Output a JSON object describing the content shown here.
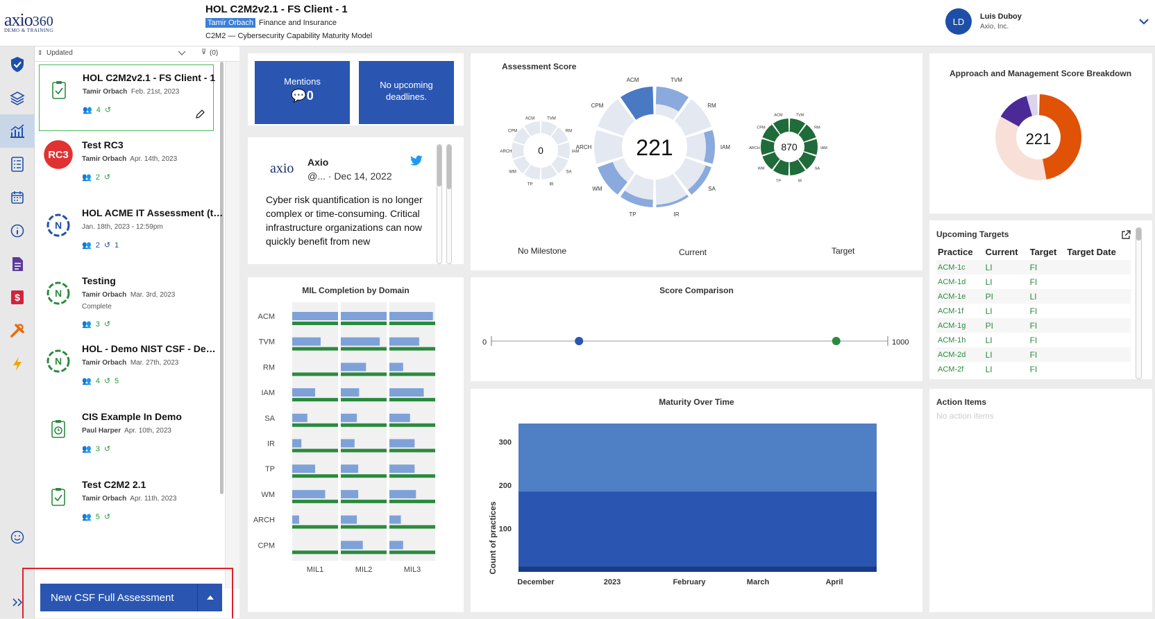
{
  "brand": {
    "logo_text": "axio",
    "logo_num": "360",
    "logo_sub": "DEMO & TRAINING"
  },
  "header": {
    "title": "HOL C2M2v2.1 - FS Client - 1",
    "owner_tag": "Tamir Orbach",
    "sector": "Finance and Insurance",
    "model": "C2M2 — Cybersecurity Capability Maturity Model"
  },
  "user": {
    "initials": "LD",
    "name": "Luis Duboy",
    "org": "Axio, Inc."
  },
  "sort": {
    "label": "Updated",
    "filter": "(0)"
  },
  "assessments": [
    {
      "title": "HOL C2M2v2.1 - FS Client - 1",
      "owner": "Tamir Orbach",
      "date": "Feb. 21st, 2023",
      "users": "4",
      "history": "",
      "status": ""
    },
    {
      "title": "Test RC3",
      "owner": "Tamir Orbach",
      "date": "Apr. 14th, 2023",
      "users": "2",
      "history": "",
      "status": "",
      "badge": "RC3"
    },
    {
      "title": "HOL ACME IT Assessment (test)",
      "owner": "",
      "date": "Jan. 18th, 2023 - 12:59pm",
      "users": "2",
      "history": "1",
      "status": ""
    },
    {
      "title": "Testing",
      "owner": "Tamir Orbach",
      "date": "Mar. 3rd, 2023",
      "users": "3",
      "history": "",
      "status": "Complete"
    },
    {
      "title": "HOL - Demo NIST CSF - Demo ...",
      "owner": "Tamir Orbach",
      "date": "Mar. 27th, 2023",
      "users": "4",
      "history": "5",
      "status": ""
    },
    {
      "title": "CIS Example In Demo",
      "owner": "Paul Harper",
      "date": "Apr. 10th, 2023",
      "users": "3",
      "history": "",
      "status": ""
    },
    {
      "title": "Test C2M2 2.1",
      "owner": "Tamir Orbach",
      "date": "Apr. 11th, 2023",
      "users": "5",
      "history": "",
      "status": ""
    }
  ],
  "new_button": {
    "label": "New CSF Full Assessment"
  },
  "mentions": {
    "label": "Mentions",
    "count": "0"
  },
  "deadlines": {
    "label": "No upcoming deadlines."
  },
  "tweet": {
    "account": "Axio",
    "logo": "axio",
    "handle": "@... · Dec 14, 2022",
    "body": "Cyber risk quantification is no longer complex or time-consuming. Critical infrastructure organizations can now quickly benefit from new"
  },
  "assessment_score": {
    "title": "Assessment Score",
    "milestone": {
      "label": "No Milestone",
      "value": "0"
    },
    "current": {
      "label": "Current",
      "value": "221"
    },
    "target": {
      "label": "Target",
      "value": "870"
    },
    "domains": [
      "ACM",
      "TVM",
      "RM",
      "IAM",
      "SA",
      "IR",
      "TP",
      "WM",
      "ARCH",
      "CPM"
    ],
    "current_fill": [
      0.55,
      0.35,
      0,
      0.18,
      0.12,
      0.05,
      0.15,
      0.32,
      0,
      0
    ]
  },
  "approach": {
    "title": "Approach and Management Score Breakdown",
    "value": "221"
  },
  "upcoming": {
    "title": "Upcoming Targets",
    "headers": [
      "Practice",
      "Current",
      "Target",
      "Target Date"
    ],
    "rows": [
      [
        "ACM-1c",
        "LI",
        "FI",
        ""
      ],
      [
        "ACM-1d",
        "LI",
        "FI",
        ""
      ],
      [
        "ACM-1e",
        "PI",
        "LI",
        ""
      ],
      [
        "ACM-1f",
        "LI",
        "FI",
        ""
      ],
      [
        "ACM-1g",
        "PI",
        "FI",
        ""
      ],
      [
        "ACM-1h",
        "LI",
        "FI",
        ""
      ],
      [
        "ACM-2d",
        "LI",
        "FI",
        ""
      ],
      [
        "ACM-2f",
        "LI",
        "FI",
        ""
      ]
    ]
  },
  "mil": {
    "title": "MIL Completion by Domain",
    "cols": [
      "MIL1",
      "MIL2",
      "MIL3"
    ]
  },
  "score_comparison": {
    "title": "Score Comparison",
    "min": "0",
    "max": "1000",
    "current": 221,
    "target": 870
  },
  "maturity": {
    "title": "Maturity Over Time",
    "ylabel": "Count of practices",
    "xticks": [
      "December",
      "2023",
      "February",
      "March",
      "April"
    ],
    "yticks": [
      "100",
      "200",
      "300"
    ]
  },
  "action_items": {
    "title": "Action Items",
    "empty": "No action items"
  },
  "chart_data": [
    {
      "type": "bar",
      "title": "MIL Completion by Domain",
      "categories": [
        "ACM",
        "TVM",
        "RM",
        "IAM",
        "SA",
        "IR",
        "TP",
        "WM",
        "ARCH",
        "CPM"
      ],
      "series": [
        {
          "name": "MIL1",
          "values": [
            1.0,
            0.62,
            0,
            0.5,
            0.33,
            0.2,
            0.5,
            0.72,
            0.15,
            0
          ]
        },
        {
          "name": "MIL2",
          "values": [
            1.0,
            0.85,
            0.55,
            0.4,
            0.35,
            0.3,
            0.38,
            0.38,
            0.35,
            0.48
          ]
        },
        {
          "name": "MIL3",
          "values": [
            0.95,
            0.65,
            0.3,
            0.75,
            0.45,
            0.55,
            0.55,
            0.58,
            0.25,
            0.3
          ]
        }
      ]
    },
    {
      "type": "area",
      "title": "Maturity Over Time",
      "x": [
        "December",
        "2023",
        "February",
        "March",
        "April"
      ],
      "series": [
        {
          "values": [
            342,
            342,
            342,
            342,
            342
          ]
        },
        {
          "values": [
            185,
            185,
            185,
            185,
            185
          ]
        },
        {
          "values": [
            12,
            12,
            12,
            12,
            12
          ]
        }
      ],
      "ylim": [
        0,
        342
      ]
    }
  ],
  "colors": {
    "primary": "#2a56b2",
    "green": "#2b8a3e",
    "orange": "#e05206"
  }
}
